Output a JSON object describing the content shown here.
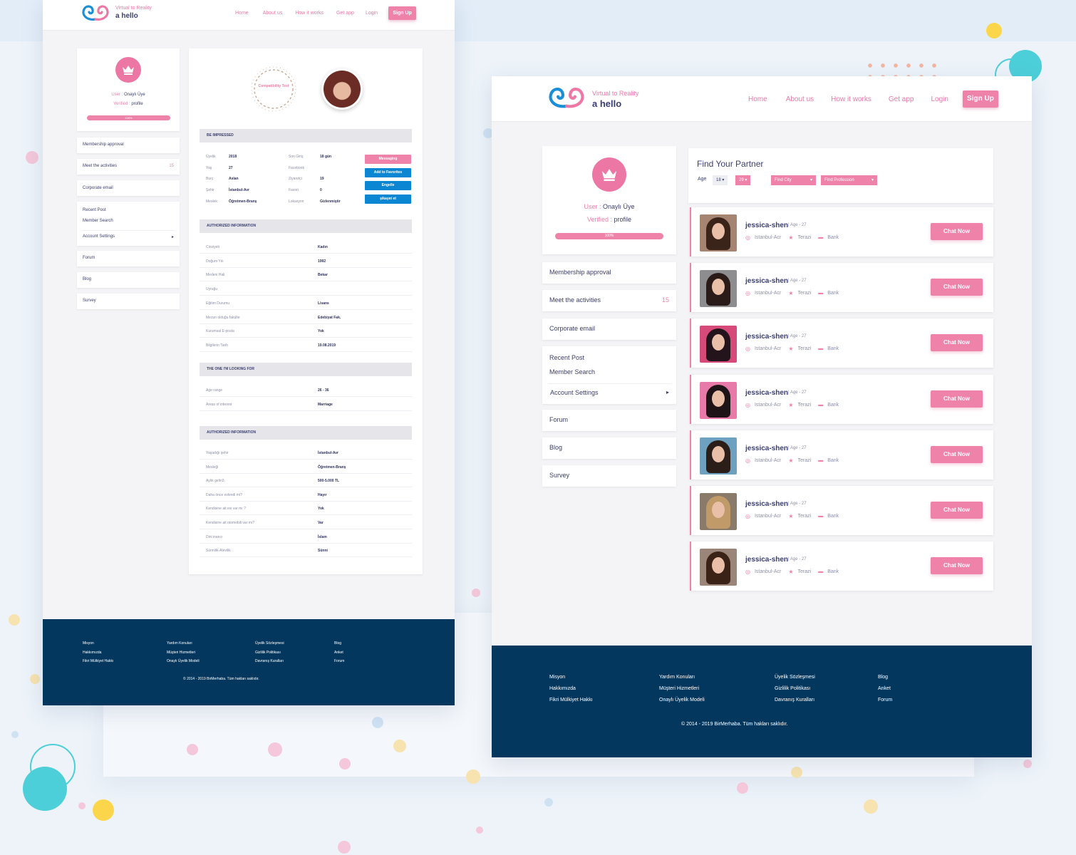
{
  "colors": {
    "accent": "#ef82a9",
    "navy": "#04375e",
    "blue": "#0b86d2",
    "bg": "#edf3f9"
  },
  "brand": {
    "tagline": "Virtual to Reality",
    "name": "a hello"
  },
  "nav": {
    "home": "Home",
    "about": "About us",
    "how": "How it works",
    "app": "Get app",
    "login": "Login",
    "signup": "Sign Up"
  },
  "user_card": {
    "user_key": "User :",
    "user_val": "Onaylı Üye",
    "verified_key": "Verified :",
    "verified_val": "profile",
    "progress_label": "100%",
    "progress": 1.0
  },
  "sidebar": {
    "membership": "Membership approval",
    "activities": "Meet the activities",
    "activities_count": "15",
    "corporate": "Corporate email",
    "recent": "Recent Post",
    "member_search": "Member Search",
    "account": "Account Settings",
    "forum": "Forum",
    "blog": "Blog",
    "survey": "Survey"
  },
  "profile": {
    "compat_title": "Compatibility Test",
    "be_impressed": "BE IMPRESSED",
    "left": [
      {
        "k": "Üyelik",
        "v": "2018"
      },
      {
        "k": "Yaş",
        "v": "27"
      },
      {
        "k": "Burç",
        "v": "Aslan"
      },
      {
        "k": "Şehir",
        "v": "İstanbul-Avr"
      },
      {
        "k": "Meslek",
        "v": "Öğretmen-Branş"
      }
    ],
    "right": [
      {
        "k": "Son Giriş",
        "v": "18 gün"
      },
      {
        "k": "Facebook",
        "v": ""
      },
      {
        "k": "Ziyaretçi",
        "v": "19"
      },
      {
        "k": "Favori",
        "v": "0"
      },
      {
        "k": "Lokasyon",
        "v": "Gizlenmiştir"
      }
    ],
    "actions": {
      "messaging": "Messaging",
      "favorites": "Add to Favorites",
      "block": "Engelle",
      "complain": "şikayet et"
    },
    "auth_title": "AUTHORIZED INFORMATION",
    "auth": [
      {
        "k": "Cinsiyeti",
        "v": "Kadın"
      },
      {
        "k": "Doğum Yılı",
        "v": "1992"
      },
      {
        "k": "Medeni Hali",
        "v": "Bekar"
      },
      {
        "k": "Uyruğu",
        "v": ""
      },
      {
        "k": "Eğitim Durumu",
        "v": "Lisans"
      },
      {
        "k": "Mezun olduğu fakülte",
        "v": "Edebiyat Fak."
      },
      {
        "k": "Kurumsal E-posta",
        "v": "Yok"
      },
      {
        "k": "Bilgilerin Tarih",
        "v": "19.08.2019"
      }
    ],
    "looking_title": "THE ONE I'M LOOKING FOR",
    "looking": [
      {
        "k": "Age range",
        "v": "26 - 36"
      },
      {
        "k": "Areas of interest",
        "v": "Marriage"
      }
    ],
    "auth2_title": "AUTHORIZED INFORMATION",
    "auth2": [
      {
        "k": "Yaşadığı şehir",
        "v": "İstanbul-Avr"
      },
      {
        "k": "Mesleği",
        "v": "Öğretmen-Branş"
      },
      {
        "k": "Aylık geliri3.",
        "v": "500-5.000 TL"
      },
      {
        "k": "Daha önce evlendi mi?",
        "v": "Hayır"
      },
      {
        "k": "Kendisine ait evi var mı ?",
        "v": "Yok"
      },
      {
        "k": "Kendisine ait otomobili var mı?",
        "v": "Var"
      },
      {
        "k": "Dini inancı",
        "v": "İslam"
      },
      {
        "k": "Sünnilik-Alevilik",
        "v": "Sünni"
      }
    ]
  },
  "find": {
    "title": "Find Your Partner",
    "age_label": "Age",
    "age_from": "18",
    "age_to": "29",
    "city": "Find City",
    "profession": "Find Profession"
  },
  "partners": [
    {
      "name": "jessica-shen",
      "age": "Age - 27",
      "city": "Istanbul-Acr",
      "sign": "Terazi",
      "job": "Bank",
      "cta": "Chat Now",
      "bg": "#a58472",
      "hair": "#3a2419"
    },
    {
      "name": "jessica-shen",
      "age": "Age - 27",
      "city": "Istanbul-Acr",
      "sign": "Terazi",
      "job": "Bank",
      "cta": "Chat Now",
      "bg": "#8d8c8f",
      "hair": "#2a1b18"
    },
    {
      "name": "jessica-shen",
      "age": "Age - 27",
      "city": "Istanbul-Acr",
      "sign": "Terazi",
      "job": "Bank",
      "cta": "Chat Now",
      "bg": "#d64a79",
      "hair": "#23141c"
    },
    {
      "name": "jessica-shen",
      "age": "Age - 27",
      "city": "Istanbul-Acr",
      "sign": "Terazi",
      "job": "Bank",
      "cta": "Chat Now",
      "bg": "#e77aa8",
      "hair": "#1e1418"
    },
    {
      "name": "jessica-shen",
      "age": "Age - 27",
      "city": "Istanbul-Acr",
      "sign": "Terazi",
      "job": "Bank",
      "cta": "Chat Now",
      "bg": "#6ea0c0",
      "hair": "#2b1e18"
    },
    {
      "name": "jessica-shen",
      "age": "Age - 27",
      "city": "Istanbul-Acr",
      "sign": "Terazi",
      "job": "Bank",
      "cta": "Chat Now",
      "bg": "#8a7a6a",
      "hair": "#c09a68"
    },
    {
      "name": "jessica-shen",
      "age": "Age - 27",
      "city": "Istanbul-Acr",
      "sign": "Terazi",
      "job": "Bank",
      "cta": "Chat Now",
      "bg": "#9a8578",
      "hair": "#3b2217"
    }
  ],
  "footer": {
    "col1": [
      "Misyon",
      "Hakkımızda",
      "Fikri Mülkiyet Hakkı"
    ],
    "col2": [
      "Yardım Konuları",
      "Müşteri Hizmetleri",
      "Onaylı Üyelik Modeli"
    ],
    "col3": [
      "Üyelik Sözleşmesi",
      "Gizlilik Politikası",
      "Davranış Kuralları"
    ],
    "col4": [
      "Blog",
      "Anket",
      "Forum"
    ],
    "copyright": "© 2014 - 2019 BirMerhaba. Tüm hakları saklıdır."
  }
}
